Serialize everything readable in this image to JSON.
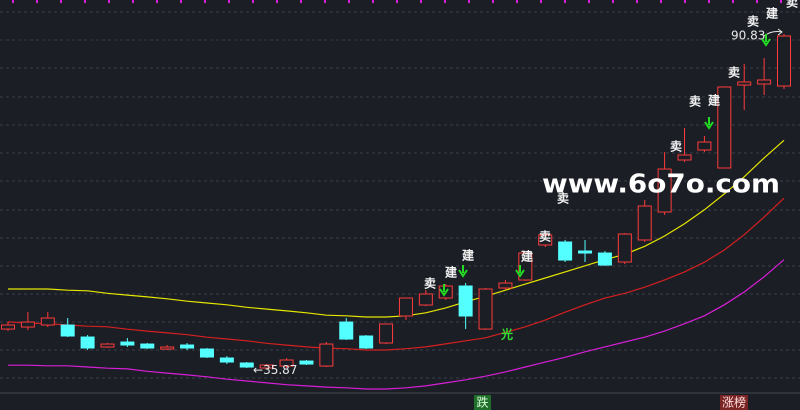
{
  "chart_data": {
    "type": "candlestick",
    "ylim": [
      29.15,
      96.41
    ],
    "up_color": "#ff3b3b",
    "down_color": "#54ffff",
    "open": [
      42.43,
      42.76,
      43.09,
      43.09,
      41.12,
      39.48,
      40.3,
      39.97,
      39.15,
      39.81,
      39.15,
      37.68,
      36.86,
      36.04,
      36.36,
      37.18,
      36.36,
      43.58,
      41.29,
      40.14,
      44.57,
      46.37,
      47.52,
      49.49,
      42.43,
      49.16,
      50.47,
      56.22,
      56.71,
      55.23,
      54.9,
      53.43,
      57.04,
      61.63,
      70.16,
      71.8,
      68.85,
      82.46,
      82.63,
      82.3
    ],
    "high": [
      43.58,
      45.22,
      45.22,
      44.24,
      41.45,
      40.14,
      40.96,
      40.14,
      39.81,
      40.14,
      39.32,
      38.0,
      37.02,
      36.69,
      37.68,
      37.35,
      40.3,
      44.24,
      41.45,
      43.26,
      47.52,
      48.83,
      49.82,
      49.98,
      49.16,
      50.47,
      54.9,
      58.18,
      57.04,
      57.04,
      55.23,
      58.18,
      63.6,
      71.47,
      75.41,
      74.1,
      82.14,
      85.91,
      86.89,
      90.83
    ],
    "low": [
      42.11,
      42.27,
      42.76,
      41.12,
      38.99,
      39.32,
      39.48,
      39.15,
      38.99,
      38.99,
      37.68,
      36.69,
      36.04,
      35.87,
      36.04,
      36.53,
      36.2,
      40.63,
      39.15,
      39.97,
      43.91,
      46.21,
      47.19,
      42.43,
      42.27,
      48.83,
      50.31,
      55.89,
      53.43,
      53.43,
      52.77,
      53.1,
      56.71,
      61.14,
      69.83,
      71.47,
      68.85,
      78.36,
      80.82,
      81.81
    ],
    "close": [
      43.09,
      43.58,
      44.24,
      41.29,
      39.32,
      39.97,
      39.81,
      39.32,
      39.48,
      39.32,
      37.84,
      37.02,
      36.2,
      36.53,
      37.35,
      36.69,
      39.97,
      40.79,
      39.32,
      43.26,
      47.52,
      48.18,
      49.49,
      44.57,
      49.0,
      49.98,
      54.9,
      57.86,
      53.75,
      54.9,
      52.93,
      58.02,
      62.61,
      68.68,
      70.98,
      73.11,
      82.14,
      82.96,
      83.29,
      90.5
    ],
    "series": [
      {
        "color": "#e6e600",
        "values": [
          49.0,
          49.0,
          49.0,
          48.8,
          48.7,
          48.3,
          48.0,
          47.7,
          47.4,
          47.0,
          46.7,
          46.4,
          46.0,
          45.7,
          45.4,
          45.1,
          44.7,
          44.6,
          44.4,
          44.4,
          44.6,
          45.1,
          45.9,
          46.9,
          47.8,
          48.8,
          49.8,
          50.8,
          51.8,
          52.8,
          53.8,
          54.7,
          56.0,
          57.7,
          59.7,
          62.0,
          64.6,
          67.4,
          70.5,
          73.4
        ]
      },
      {
        "color": "#d42020",
        "values": [
          43.6,
          43.4,
          43.3,
          43.1,
          42.9,
          42.8,
          42.4,
          42.1,
          41.8,
          41.5,
          41.1,
          40.8,
          40.5,
          40.1,
          39.8,
          39.5,
          39.3,
          39.2,
          39.0,
          39.0,
          39.2,
          39.5,
          40.0,
          40.5,
          41.0,
          41.9,
          42.8,
          43.9,
          45.2,
          46.4,
          47.5,
          48.3,
          49.3,
          50.5,
          51.8,
          53.4,
          55.4,
          57.9,
          60.8,
          63.9
        ]
      },
      {
        "color": "#d81ed8",
        "values": [
          36.5,
          36.5,
          36.4,
          36.4,
          36.2,
          36.0,
          35.9,
          35.5,
          35.2,
          34.9,
          34.6,
          34.2,
          33.9,
          33.6,
          33.3,
          33.1,
          32.9,
          32.8,
          32.6,
          32.6,
          32.8,
          33.1,
          33.6,
          34.1,
          34.7,
          35.4,
          36.2,
          37.0,
          37.8,
          38.7,
          39.5,
          40.3,
          41.1,
          42.1,
          43.3,
          44.6,
          46.4,
          48.5,
          51.0,
          53.8
        ]
      }
    ],
    "min_label": 35.87,
    "max_label": 90.83,
    "annotations": [
      "卖",
      "卖",
      "卖",
      "卖",
      "卖",
      "卖",
      "卖",
      "卖",
      "建",
      "建",
      "建",
      "建",
      "建",
      "光"
    ],
    "watermark": "www.6o7o.com",
    "footer_left": "跌",
    "footer_right": "涨榜"
  }
}
